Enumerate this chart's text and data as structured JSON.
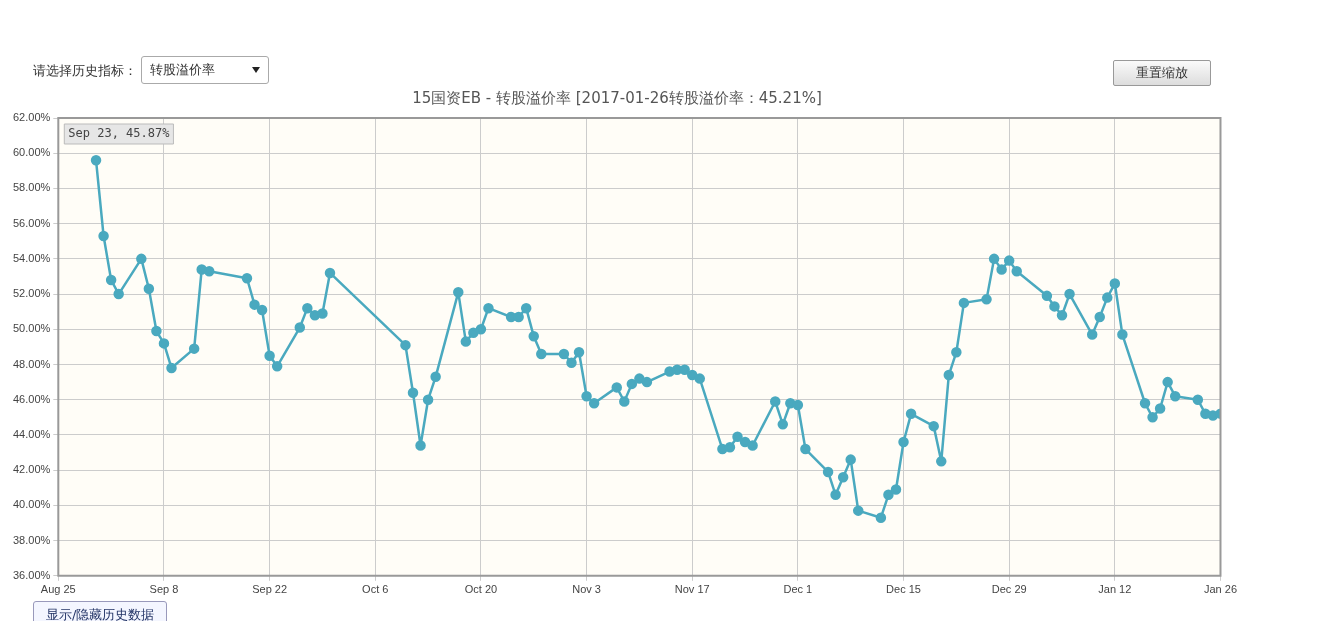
{
  "chart_data": {
    "type": "line",
    "title": "15国资EB - 转股溢价率 [2017-01-26转股溢价率：45.21%]",
    "annotations": [
      "Sep 23, 45.87%",
      "请选择历史指标：",
      "转股溢价率",
      "重置缩放",
      "显示/隐藏历史数据"
    ],
    "x": [
      "2016-08-30",
      "2016-08-31",
      "2016-09-01",
      "2016-09-02",
      "2016-09-05",
      "2016-09-06",
      "2016-09-07",
      "2016-09-08",
      "2016-09-09",
      "2016-09-12",
      "2016-09-13",
      "2016-09-14",
      "2016-09-19",
      "2016-09-20",
      "2016-09-21",
      "2016-09-22",
      "2016-09-23",
      "2016-09-26",
      "2016-09-27",
      "2016-09-28",
      "2016-09-29",
      "2016-09-30",
      "2016-10-10",
      "2016-10-11",
      "2016-10-12",
      "2016-10-13",
      "2016-10-14",
      "2016-10-17",
      "2016-10-18",
      "2016-10-19",
      "2016-10-20",
      "2016-10-21",
      "2016-10-24",
      "2016-10-25",
      "2016-10-26",
      "2016-10-27",
      "2016-10-28",
      "2016-10-31",
      "2016-11-01",
      "2016-11-02",
      "2016-11-03",
      "2016-11-04",
      "2016-11-07",
      "2016-11-08",
      "2016-11-09",
      "2016-11-10",
      "2016-11-11",
      "2016-11-14",
      "2016-11-15",
      "2016-11-16",
      "2016-11-17",
      "2016-11-18",
      "2016-11-21",
      "2016-11-22",
      "2016-11-23",
      "2016-11-24",
      "2016-11-25",
      "2016-11-28",
      "2016-11-29",
      "2016-11-30",
      "2016-12-01",
      "2016-12-02",
      "2016-12-05",
      "2016-12-06",
      "2016-12-07",
      "2016-12-08",
      "2016-12-09",
      "2016-12-12",
      "2016-12-13",
      "2016-12-14",
      "2016-12-15",
      "2016-12-16",
      "2016-12-19",
      "2016-12-20",
      "2016-12-21",
      "2016-12-22",
      "2016-12-23",
      "2016-12-26",
      "2016-12-27",
      "2016-12-28",
      "2016-12-29",
      "2016-12-30",
      "2017-01-03",
      "2017-01-04",
      "2017-01-05",
      "2017-01-06",
      "2017-01-09",
      "2017-01-10",
      "2017-01-11",
      "2017-01-12",
      "2017-01-13",
      "2017-01-16",
      "2017-01-17",
      "2017-01-18",
      "2017-01-19",
      "2017-01-20",
      "2017-01-23",
      "2017-01-24",
      "2017-01-25",
      "2017-01-26"
    ],
    "series": [
      {
        "color": "#4aa9bf",
        "values": [
          59.6,
          55.3,
          52.8,
          52.0,
          54.0,
          52.3,
          49.9,
          49.2,
          47.8,
          48.9,
          53.4,
          53.3,
          52.9,
          51.4,
          51.1,
          48.5,
          47.9,
          50.1,
          51.2,
          50.8,
          50.9,
          53.2,
          49.1,
          46.4,
          43.4,
          46.0,
          47.3,
          52.1,
          49.3,
          49.8,
          50.0,
          51.2,
          50.7,
          50.7,
          51.2,
          49.6,
          48.6,
          48.6,
          48.1,
          48.7,
          46.2,
          45.8,
          46.7,
          45.9,
          46.9,
          47.2,
          47.0,
          47.6,
          47.7,
          47.7,
          47.4,
          47.2,
          43.2,
          43.3,
          43.9,
          43.6,
          43.4,
          45.9,
          44.6,
          45.8,
          45.7,
          43.2,
          41.9,
          40.6,
          41.6,
          42.6,
          39.7,
          39.3,
          40.6,
          40.9,
          43.6,
          45.2,
          44.5,
          42.5,
          47.4,
          48.7,
          51.5,
          51.7,
          54.0,
          53.4,
          53.9,
          53.3,
          51.9,
          51.3,
          50.8,
          52.0,
          49.7,
          50.7,
          51.8,
          52.6,
          49.7,
          45.8,
          45.0,
          45.5,
          47.0,
          46.2,
          46.0,
          45.2,
          45.1,
          45.21
        ]
      }
    ],
    "xlim": [
      "2016-08-25",
      "2017-01-26"
    ],
    "xticks": [
      {
        "value": "2016-08-25",
        "label": "Aug 25"
      },
      {
        "value": "2016-09-08",
        "label": "Sep 8"
      },
      {
        "value": "2016-09-22",
        "label": "Sep 22"
      },
      {
        "value": "2016-10-06",
        "label": "Oct 6"
      },
      {
        "value": "2016-10-20",
        "label": "Oct 20"
      },
      {
        "value": "2016-11-03",
        "label": "Nov 3"
      },
      {
        "value": "2016-11-17",
        "label": "Nov 17"
      },
      {
        "value": "2016-12-01",
        "label": "Dec 1"
      },
      {
        "value": "2016-12-15",
        "label": "Dec 15"
      },
      {
        "value": "2016-12-29",
        "label": "Dec 29"
      },
      {
        "value": "2017-01-12",
        "label": "Jan 12"
      },
      {
        "value": "2017-01-26",
        "label": "Jan 26"
      }
    ],
    "ylim": [
      36,
      62
    ],
    "yticks": [
      {
        "value": 36,
        "label": "36.00%"
      },
      {
        "value": 38,
        "label": "38.00%"
      },
      {
        "value": 40,
        "label": "40.00%"
      },
      {
        "value": 42,
        "label": "42.00%"
      },
      {
        "value": 44,
        "label": "44.00%"
      },
      {
        "value": 46,
        "label": "46.00%"
      },
      {
        "value": 48,
        "label": "48.00%"
      },
      {
        "value": 50,
        "label": "50.00%"
      },
      {
        "value": 52,
        "label": "52.00%"
      },
      {
        "value": 54,
        "label": "54.00%"
      },
      {
        "value": 56,
        "label": "56.00%"
      },
      {
        "value": 58,
        "label": "58.00%"
      },
      {
        "value": 60,
        "label": "60.00%"
      },
      {
        "value": 62,
        "label": "62.00%"
      }
    ],
    "grid": true,
    "legend": false,
    "marker": "circle",
    "line_style": "solid"
  }
}
